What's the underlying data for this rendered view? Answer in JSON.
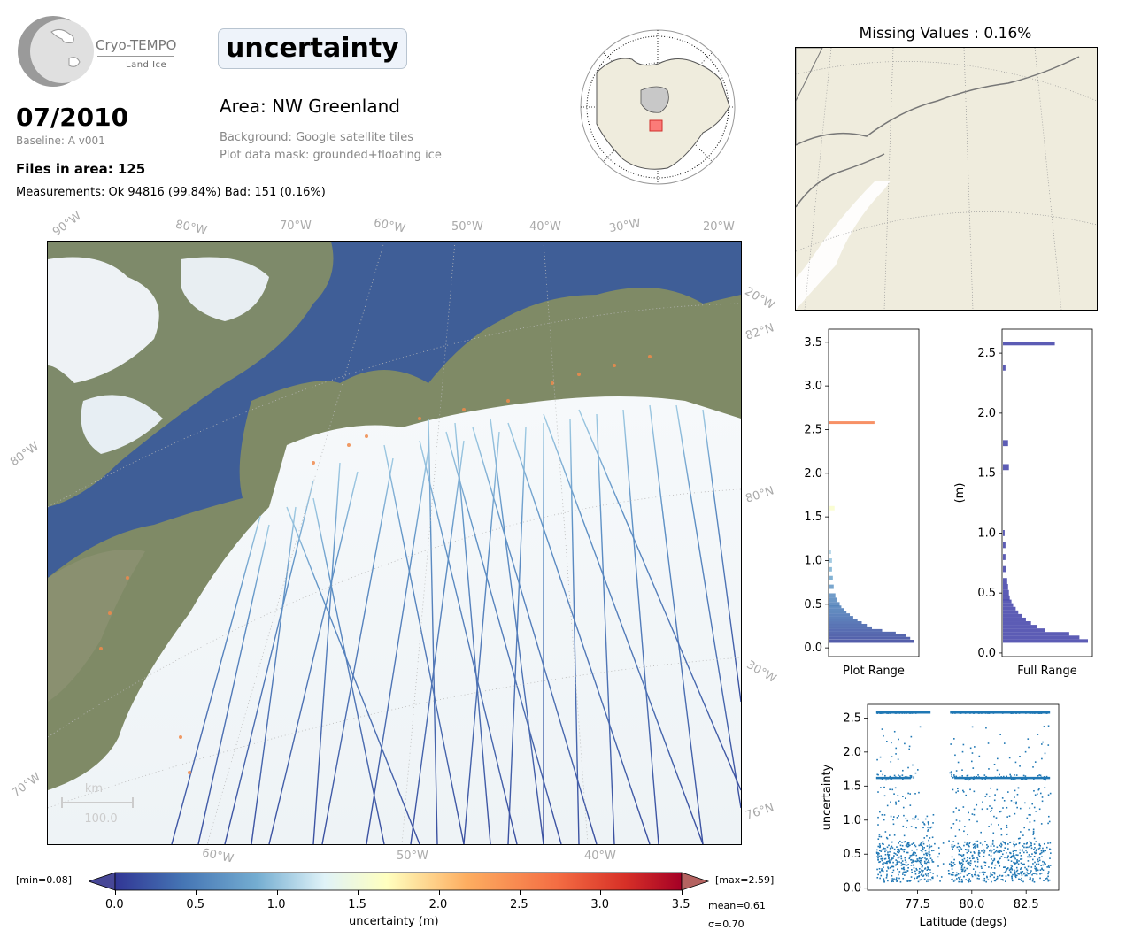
{
  "header": {
    "logo_text": "Cryo-TEMPO",
    "logo_sub": "Land Ice",
    "parameter": "uncertainty",
    "period": "07/2010",
    "baseline": "Baseline: A v001",
    "files_in_area": "Files in area: 125",
    "measurements": "Measurements: Ok 94816 (99.84%) Bad: 151 (0.16%)",
    "area": "Area: NW Greenland",
    "background": "Background: Google satellite tiles",
    "mask": "Plot data mask: grounded+floating ice"
  },
  "missing_values": "Missing Values : 0.16%",
  "main_map": {
    "top_lon_labels": [
      "90°W",
      "80°W",
      "70°W",
      "60°W",
      "50°W",
      "40°W",
      "30°W",
      "20°W"
    ],
    "right_labels": [
      "20°W",
      "82°N",
      "80°N",
      "30°W",
      "76°N"
    ],
    "left_labels": [
      "80°W",
      "70°W"
    ],
    "bottom_labels": [
      "60°W",
      "50°W",
      "40°W"
    ],
    "scale_unit": "km",
    "scale_value": "100.0"
  },
  "colorbar": {
    "min_label": "[min=0.08]",
    "max_label": "[max=2.59]",
    "ticks": [
      "0.0",
      "0.5",
      "1.0",
      "1.5",
      "2.0",
      "2.5",
      "3.0",
      "3.5"
    ],
    "label": "uncertainty (m)",
    "mean": "mean=0.61",
    "sigma": "σ=0.70"
  },
  "chart_data": [
    {
      "type": "bar",
      "orientation": "horizontal",
      "xlabel": "Plot Range",
      "ylim": [
        -0.1,
        3.65
      ],
      "yticks": [
        "0.0",
        "0.5",
        "1.0",
        "1.5",
        "2.0",
        "2.5",
        "3.0",
        "3.5"
      ],
      "bins": [
        0.075,
        0.11,
        0.14,
        0.17,
        0.2,
        0.23,
        0.26,
        0.29,
        0.32,
        0.35,
        0.38,
        0.41,
        0.44,
        0.47,
        0.5,
        0.55,
        0.6,
        0.7,
        0.8,
        0.9,
        1.0,
        1.1,
        1.6,
        2.58
      ],
      "counts": [
        1.0,
        0.95,
        0.9,
        0.78,
        0.62,
        0.5,
        0.44,
        0.38,
        0.33,
        0.28,
        0.24,
        0.2,
        0.17,
        0.14,
        0.12,
        0.09,
        0.07,
        0.05,
        0.04,
        0.03,
        0.03,
        0.02,
        0.06,
        0.53
      ]
    },
    {
      "type": "bar",
      "orientation": "horizontal",
      "xlabel": "Full Range",
      "ylabel": "(m)",
      "ylim": [
        -0.03,
        2.7
      ],
      "yticks": [
        "0.0",
        "0.5",
        "1.0",
        "1.5",
        "2.0",
        "2.5"
      ],
      "bins": [
        0.1,
        0.13,
        0.16,
        0.19,
        0.22,
        0.25,
        0.28,
        0.31,
        0.34,
        0.37,
        0.4,
        0.43,
        0.46,
        0.5,
        0.55,
        0.6,
        0.7,
        0.8,
        0.9,
        1.0,
        1.55,
        1.75,
        2.38,
        2.58
      ],
      "counts": [
        1.0,
        0.9,
        0.78,
        0.5,
        0.4,
        0.33,
        0.27,
        0.22,
        0.18,
        0.15,
        0.12,
        0.1,
        0.08,
        0.07,
        0.06,
        0.05,
        0.04,
        0.03,
        0.03,
        0.02,
        0.07,
        0.06,
        0.03,
        0.61
      ]
    },
    {
      "type": "scatter",
      "xlabel": "Latitude (degs)",
      "ylabel": "uncertainty",
      "xlim": [
        75.2,
        84.0
      ],
      "ylim": [
        -0.03,
        2.7
      ],
      "xticks": [
        "77.5",
        "80.0",
        "82.5"
      ],
      "yticks": [
        "0.0",
        "0.5",
        "1.0",
        "1.5",
        "2.0",
        "2.5"
      ],
      "color": "#1f77b4"
    }
  ]
}
